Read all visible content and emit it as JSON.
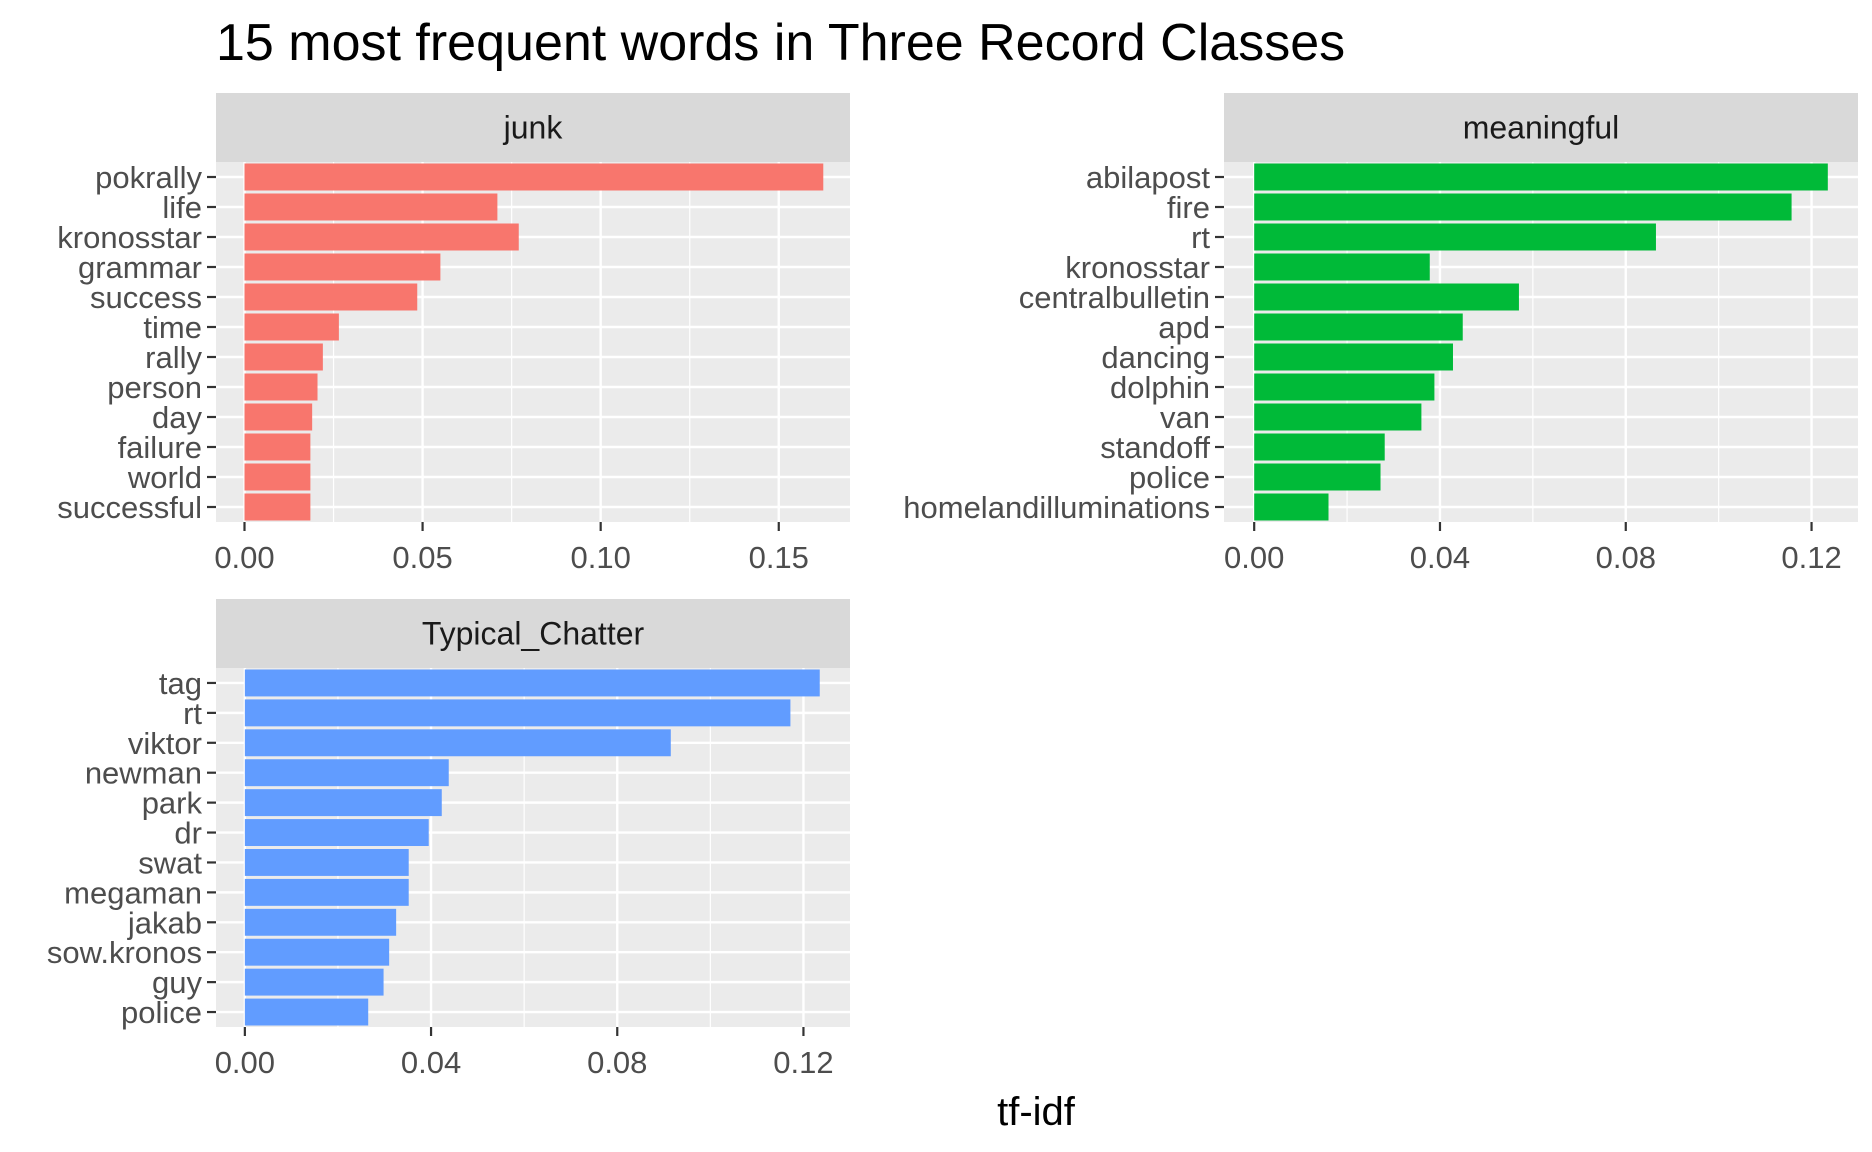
{
  "chart_data": {
    "title": "15 most frequent words in Three Record Classes",
    "xlabel": "tf-idf",
    "ylabel": "",
    "grid": true,
    "legend": "none",
    "facets": [
      {
        "type": "bar",
        "orientation": "horizontal",
        "name": "junk",
        "color": "#F8766D",
        "xlim": [
          -0.008,
          0.17
        ],
        "xticks": [
          0.0,
          0.05,
          0.1,
          0.15
        ],
        "xtick_labels": [
          "0.00",
          "0.05",
          "0.10",
          "0.15"
        ],
        "categories": [
          "pokrally",
          "life",
          "kronosstar",
          "grammar",
          "success",
          "time",
          "rally",
          "person",
          "day",
          "failure",
          "world",
          "successful"
        ],
        "values": [
          0.1625,
          0.071,
          0.077,
          0.055,
          0.0485,
          0.0265,
          0.022,
          0.0205,
          0.019,
          0.0185,
          0.0185,
          0.0185
        ]
      },
      {
        "type": "bar",
        "orientation": "horizontal",
        "name": "meaningful",
        "color": "#00BA38",
        "xlim": [
          -0.0065,
          0.13
        ],
        "xticks": [
          0.0,
          0.04,
          0.08,
          0.12
        ],
        "xtick_labels": [
          "0.00",
          "0.04",
          "0.08",
          "0.12"
        ],
        "categories": [
          "abilapost",
          "fire",
          "rt",
          "kronosstar",
          "centralbulletin",
          "apd",
          "dancing",
          "dolphin",
          "van",
          "standoff",
          "police",
          "homelandilluminations"
        ],
        "values": [
          0.1235,
          0.1157,
          0.0865,
          0.0378,
          0.057,
          0.0449,
          0.0428,
          0.0388,
          0.036,
          0.0281,
          0.0272,
          0.016
        ]
      },
      {
        "type": "bar",
        "orientation": "horizontal",
        "name": "Typical_Chatter",
        "color": "#619CFF",
        "xlim": [
          -0.0062,
          0.13
        ],
        "xticks": [
          0.0,
          0.04,
          0.08,
          0.12
        ],
        "xtick_labels": [
          "0.00",
          "0.04",
          "0.08",
          "0.12"
        ],
        "categories": [
          "tag",
          "rt",
          "viktor",
          "newman",
          "park",
          "dr",
          "swat",
          "megaman",
          "jakab",
          "sow.kronos",
          "guy",
          "police"
        ],
        "values": [
          0.1235,
          0.1172,
          0.0915,
          0.0438,
          0.0423,
          0.0395,
          0.0352,
          0.0352,
          0.0325,
          0.031,
          0.0298,
          0.0265
        ]
      }
    ]
  }
}
